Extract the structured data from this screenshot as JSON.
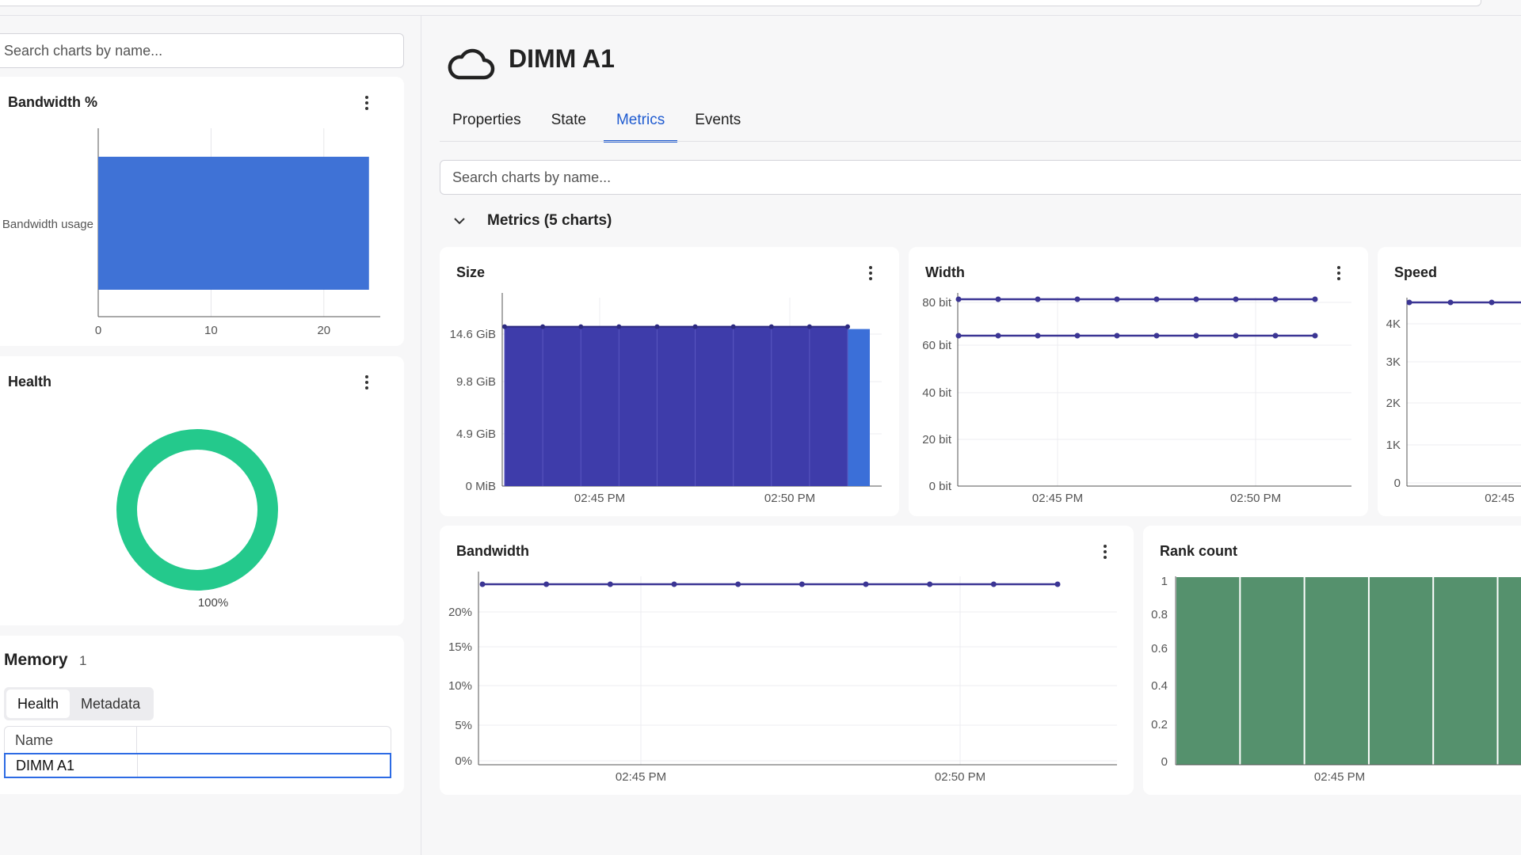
{
  "left": {
    "search_placeholder": "Search charts by name...",
    "bandwidth_card": {
      "title": "Bandwidth %"
    },
    "health_card": {
      "title": "Health"
    },
    "memory": {
      "title": "Memory",
      "count": "1",
      "segments": [
        "Health",
        "Metadata"
      ],
      "table_header": "Name",
      "row_name": "DIMM A1"
    }
  },
  "main": {
    "title": "DIMM A1",
    "tabs": [
      "Properties",
      "State",
      "Metrics",
      "Events"
    ],
    "active_tab": "Metrics",
    "search_placeholder": "Search charts by name...",
    "group_title": "Metrics (5 charts)",
    "cards": {
      "size": "Size",
      "width": "Width",
      "speed": "Speed",
      "bandwidth": "Bandwidth",
      "rank": "Rank count"
    }
  },
  "chart_data": [
    {
      "type": "bar",
      "orientation": "horizontal",
      "title": "Bandwidth %",
      "categories": [
        "Bandwidth usage"
      ],
      "values": [
        24
      ],
      "xlim": [
        0,
        25
      ],
      "x_ticks": [
        "0",
        "10",
        "20"
      ],
      "color": "#3f72d6"
    },
    {
      "type": "pie",
      "title": "Health",
      "values": [
        100
      ],
      "labels": [
        "100%"
      ],
      "color": "#24c98c"
    },
    {
      "type": "area",
      "title": "Size",
      "y_ticks": [
        "0 MiB",
        "4.9 GiB",
        "9.8 GiB",
        "14.6 GiB"
      ],
      "ylim": [
        0,
        19.5
      ],
      "x_ticks": [
        "02:45 PM",
        "02:50 PM"
      ],
      "values": [
        16.5,
        16.5,
        16.5,
        16.5,
        16.5,
        16.5,
        16.5,
        16.5,
        16.5,
        16.5
      ],
      "color": "#3e3caa"
    },
    {
      "type": "line",
      "title": "Width",
      "y_ticks": [
        "0 bit",
        "20 bit",
        "40 bit",
        "60 bit",
        "80 bit"
      ],
      "ylim": [
        0,
        82
      ],
      "x_ticks": [
        "02:45 PM",
        "02:50 PM"
      ],
      "series": [
        {
          "values": [
            80,
            80,
            80,
            80,
            80,
            80,
            80,
            80,
            80,
            80
          ]
        },
        {
          "values": [
            64,
            64,
            64,
            64,
            64,
            64,
            64,
            64,
            64,
            64
          ]
        }
      ],
      "color": "#3b3594"
    },
    {
      "type": "line",
      "title": "Speed",
      "y_ticks": [
        "0",
        "1K",
        "2K",
        "3K",
        "4K"
      ],
      "ylim": [
        0,
        4400
      ],
      "x_ticks": [
        "02:45"
      ],
      "values": [
        4400,
        4400,
        4400
      ],
      "color": "#3b3594"
    },
    {
      "type": "line",
      "title": "Bandwidth",
      "y_ticks": [
        "0%",
        "5%",
        "10%",
        "15%",
        "20%"
      ],
      "ylim": [
        0,
        24
      ],
      "x_ticks": [
        "02:45 PM",
        "02:50 PM"
      ],
      "values": [
        23,
        23,
        23,
        23,
        23,
        23,
        23,
        23,
        23,
        23
      ],
      "color": "#3b3594"
    },
    {
      "type": "bar",
      "title": "Rank count",
      "y_ticks": [
        "0",
        "0.2",
        "0.4",
        "0.6",
        "0.8",
        "1"
      ],
      "ylim": [
        0,
        1
      ],
      "x_ticks": [
        "02:45 PM"
      ],
      "values": [
        1,
        1,
        1,
        1,
        1,
        1
      ],
      "color": "#55916d"
    }
  ]
}
